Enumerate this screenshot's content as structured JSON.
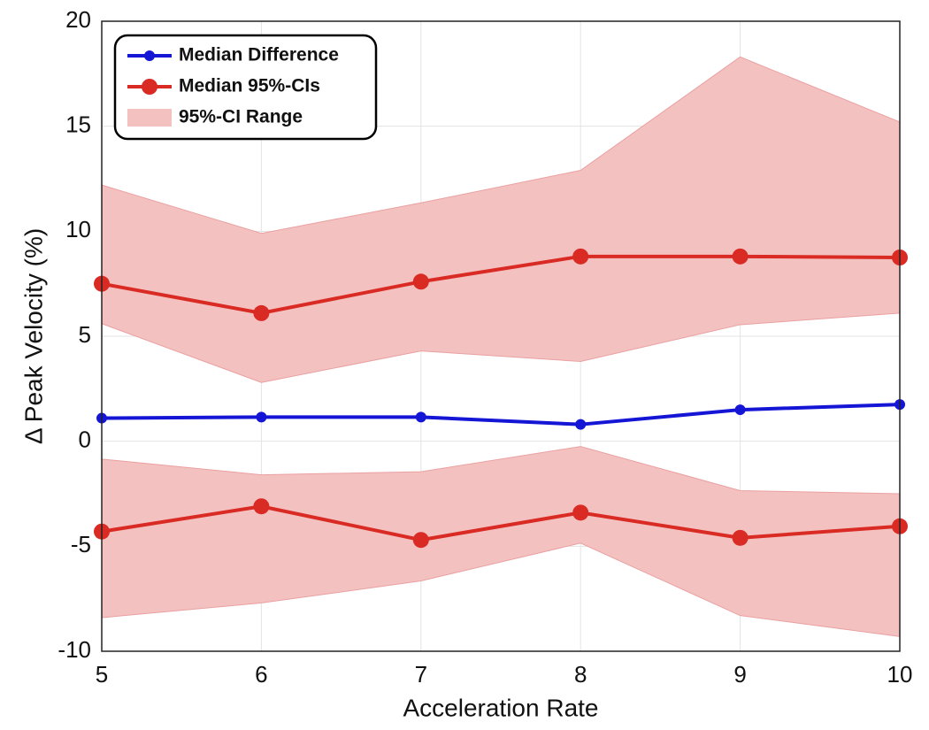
{
  "chart_data": {
    "type": "line",
    "xlabel": "Acceleration Rate",
    "ylabel": "Δ Peak Velocity (%)",
    "x": [
      5,
      6,
      7,
      8,
      9,
      10
    ],
    "xlim": [
      5,
      10
    ],
    "xticks": [
      5,
      6,
      7,
      8,
      9,
      10
    ],
    "ylim": [
      -10,
      20
    ],
    "yticks": [
      -10,
      -5,
      0,
      5,
      10,
      15,
      20
    ],
    "grid": true,
    "legend": "upper-left",
    "band": {
      "name": "95%-CI Range",
      "color": "#f4c1c1",
      "ranges": [
        {
          "upper": [
            12.2,
            9.9,
            11.35,
            12.9,
            18.3,
            15.2
          ],
          "lower": [
            5.6,
            2.8,
            4.3,
            3.8,
            5.55,
            6.1
          ]
        },
        {
          "upper": [
            -0.85,
            -1.6,
            -1.45,
            -0.25,
            -2.35,
            -2.5
          ],
          "lower": [
            -8.4,
            -7.7,
            -6.65,
            -4.85,
            -8.3,
            -9.3
          ]
        }
      ]
    },
    "series": [
      {
        "name": "Median Difference",
        "color": "#1515d6",
        "lines": [
          [
            1.1,
            1.15,
            1.15,
            0.8,
            1.5,
            1.75
          ]
        ]
      },
      {
        "name": "Median 95%-CIs",
        "color": "#d92b24",
        "lines": [
          [
            7.5,
            6.1,
            7.6,
            8.8,
            8.8,
            8.75
          ],
          [
            -4.3,
            -3.1,
            -4.7,
            -3.4,
            -4.6,
            -4.05
          ]
        ]
      }
    ]
  }
}
